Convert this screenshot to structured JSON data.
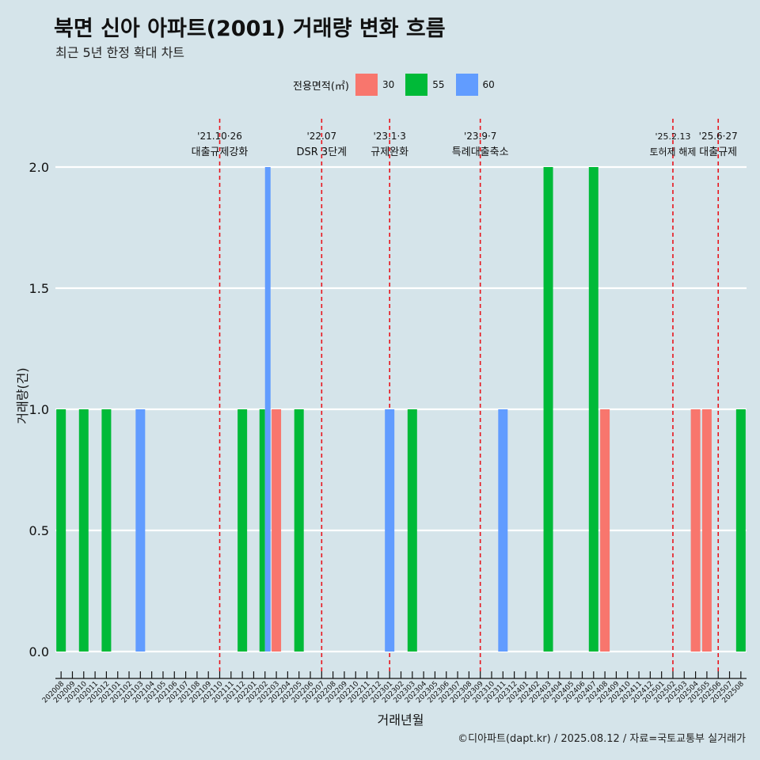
{
  "header": {
    "title": "북면 신아 아파트(2001) 거래량 변화 흐름",
    "subtitle": "최근 5년 한정 확대 차트"
  },
  "footer": {
    "caption": "©디아파트(dapt.kr) / 2025.08.12 / 자료=국토교통부 실거래가"
  },
  "legend": {
    "title": "전용면적(㎡)",
    "items": [
      {
        "label": "30",
        "color": "#f8766d"
      },
      {
        "label": "55",
        "color": "#00ba38"
      },
      {
        "label": "60",
        "color": "#619cff"
      }
    ]
  },
  "chart_data": {
    "type": "bar",
    "title": "북면 신아 아파트(2001) 거래량 변화 흐름",
    "xlabel": "거래년월",
    "ylabel": "거래량(건)",
    "ylim": [
      0,
      2.1
    ],
    "yticks": [
      0.0,
      0.5,
      1.0,
      1.5,
      2.0
    ],
    "ytick_labels": [
      "0.0",
      "0.5",
      "1.0",
      "1.5",
      "2.0"
    ],
    "grid": true,
    "categories": [
      "202008",
      "202009",
      "202010",
      "202011",
      "202012",
      "202101",
      "202102",
      "202103",
      "202104",
      "202105",
      "202106",
      "202107",
      "202108",
      "202109",
      "202110",
      "202111",
      "202112",
      "202201",
      "202202",
      "202203",
      "202204",
      "202205",
      "202206",
      "202207",
      "202208",
      "202209",
      "202210",
      "202211",
      "202212",
      "202301",
      "202302",
      "202303",
      "202304",
      "202305",
      "202306",
      "202307",
      "202308",
      "202309",
      "202310",
      "202311",
      "202312",
      "202401",
      "202402",
      "202403",
      "202404",
      "202405",
      "202406",
      "202407",
      "202408",
      "202409",
      "202410",
      "202411",
      "202412",
      "202501",
      "202502",
      "202503",
      "202504",
      "202505",
      "202506",
      "202507",
      "202508"
    ],
    "series": [
      {
        "name": "30",
        "color": "#f8766d",
        "points": [
          {
            "x": "202203",
            "y": 1
          },
          {
            "x": "202408",
            "y": 1
          },
          {
            "x": "202504",
            "y": 1
          },
          {
            "x": "202505",
            "y": 1
          }
        ]
      },
      {
        "name": "55",
        "color": "#00ba38",
        "points": [
          {
            "x": "202008",
            "y": 1
          },
          {
            "x": "202010",
            "y": 1
          },
          {
            "x": "202012",
            "y": 1
          },
          {
            "x": "202112",
            "y": 1
          },
          {
            "x": "202202",
            "y": 1
          },
          {
            "x": "202205",
            "y": 1
          },
          {
            "x": "202303",
            "y": 1
          },
          {
            "x": "202403",
            "y": 2
          },
          {
            "x": "202407",
            "y": 2
          },
          {
            "x": "202508",
            "y": 1
          }
        ]
      },
      {
        "name": "60",
        "color": "#619cff",
        "points": [
          {
            "x": "202103",
            "y": 1
          },
          {
            "x": "202202",
            "y": 2
          },
          {
            "x": "202301",
            "y": 1
          },
          {
            "x": "202311",
            "y": 1
          }
        ]
      }
    ],
    "events": [
      {
        "x": 14.0,
        "date": "'21.10·26",
        "label": "대출규제강화"
      },
      {
        "x": 23.0,
        "date": "'22.07",
        "label": "DSR 3단계"
      },
      {
        "x": 29.0,
        "date": "'23.1·3",
        "label": "규제완화"
      },
      {
        "x": 37.0,
        "date": "'23.9·7",
        "label": "특례대출축소"
      },
      {
        "x": 54.0,
        "date": "'25.2.13",
        "label": "토허제 해제"
      },
      {
        "x": 58.0,
        "date": "'25.6·27",
        "label": "대출규제"
      }
    ]
  }
}
